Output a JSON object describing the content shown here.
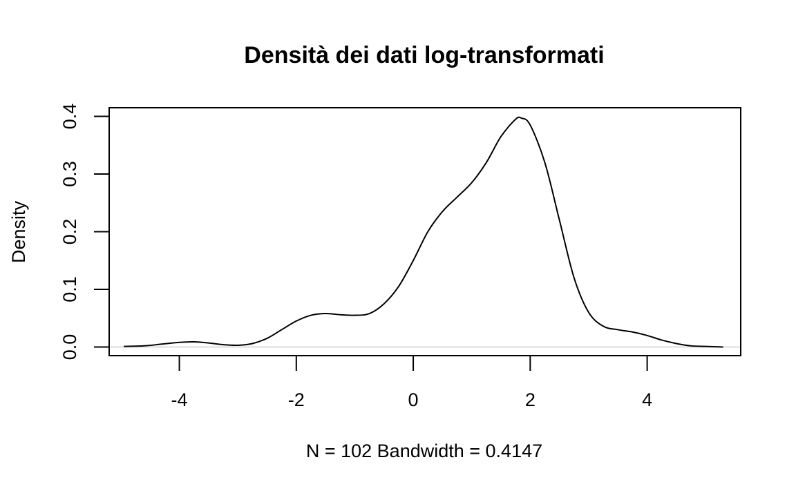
{
  "chart_data": {
    "type": "line",
    "title": "Densità dei dati log-transformati",
    "xlabel": "N = 102   Bandwidth = 0.4147",
    "ylabel": "Density",
    "xlim": [
      -5.2,
      5.6
    ],
    "ylim": [
      -0.015,
      0.415
    ],
    "x_ticks": [
      -4,
      -2,
      0,
      2,
      4
    ],
    "x_tick_labels": [
      "-4",
      "-2",
      "0",
      "2",
      "4"
    ],
    "y_ticks": [
      0.0,
      0.1,
      0.2,
      0.3,
      0.4
    ],
    "y_tick_labels": [
      "0.0",
      "0.1",
      "0.2",
      "0.3",
      "0.4"
    ],
    "grid": false,
    "zero_line": true,
    "series": [
      {
        "x": [
          -4.95,
          -4.6,
          -4.3,
          -4.0,
          -3.75,
          -3.5,
          -3.25,
          -3.0,
          -2.75,
          -2.5,
          -2.25,
          -2.0,
          -1.75,
          -1.5,
          -1.25,
          -1.0,
          -0.75,
          -0.5,
          -0.25,
          0.0,
          0.25,
          0.5,
          0.75,
          1.0,
          1.25,
          1.5,
          1.75,
          1.85,
          2.0,
          2.25,
          2.5,
          2.75,
          3.0,
          3.25,
          3.5,
          3.75,
          4.0,
          4.25,
          4.5,
          4.75,
          5.0,
          5.3
        ],
        "y": [
          0.001,
          0.002,
          0.005,
          0.008,
          0.009,
          0.007,
          0.004,
          0.003,
          0.006,
          0.015,
          0.03,
          0.045,
          0.055,
          0.058,
          0.056,
          0.055,
          0.058,
          0.075,
          0.105,
          0.15,
          0.2,
          0.235,
          0.26,
          0.285,
          0.32,
          0.365,
          0.395,
          0.397,
          0.385,
          0.32,
          0.22,
          0.12,
          0.06,
          0.036,
          0.03,
          0.026,
          0.02,
          0.012,
          0.006,
          0.002,
          0.001,
          0.0
        ]
      }
    ]
  }
}
